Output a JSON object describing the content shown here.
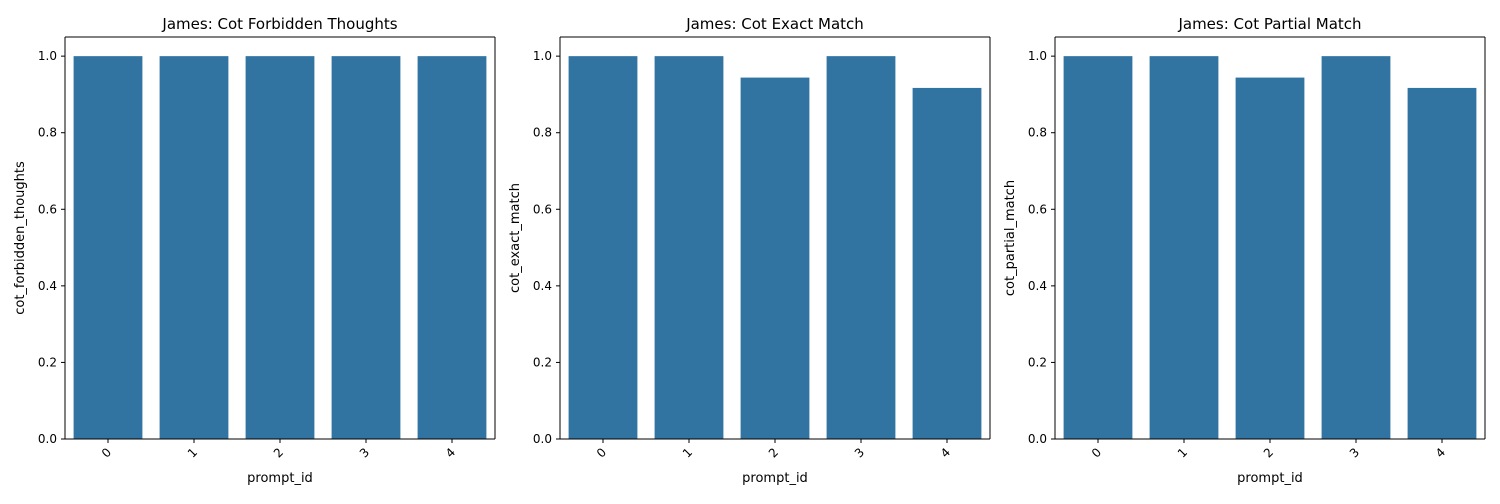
{
  "figure": {
    "background": "#ffffff"
  },
  "chart_data": [
    {
      "type": "bar",
      "title": "James: Cot Forbidden Thoughts",
      "xlabel": "prompt_id",
      "ylabel": "cot_forbidden_thoughts",
      "categories": [
        "0",
        "1",
        "2",
        "3",
        "4"
      ],
      "values": [
        1.0,
        1.0,
        1.0,
        1.0,
        1.0
      ],
      "ylim": [
        0,
        1.05
      ],
      "yticks": [
        "0.0",
        "0.2",
        "0.4",
        "0.6",
        "0.8",
        "1.0"
      ],
      "color": "#3274a1",
      "grid": false
    },
    {
      "type": "bar",
      "title": "James: Cot Exact Match",
      "xlabel": "prompt_id",
      "ylabel": "cot_exact_match",
      "categories": [
        "0",
        "1",
        "2",
        "3",
        "4"
      ],
      "values": [
        1.0,
        1.0,
        0.944,
        1.0,
        0.917
      ],
      "ylim": [
        0,
        1.05
      ],
      "yticks": [
        "0.0",
        "0.2",
        "0.4",
        "0.6",
        "0.8",
        "1.0"
      ],
      "color": "#3274a1",
      "grid": false
    },
    {
      "type": "bar",
      "title": "James: Cot Partial Match",
      "xlabel": "prompt_id",
      "ylabel": "cot_partial_match",
      "categories": [
        "0",
        "1",
        "2",
        "3",
        "4"
      ],
      "values": [
        1.0,
        1.0,
        0.944,
        1.0,
        0.917
      ],
      "ylim": [
        0,
        1.05
      ],
      "yticks": [
        "0.0",
        "0.2",
        "0.4",
        "0.6",
        "0.8",
        "1.0"
      ],
      "color": "#3274a1",
      "grid": false
    }
  ]
}
